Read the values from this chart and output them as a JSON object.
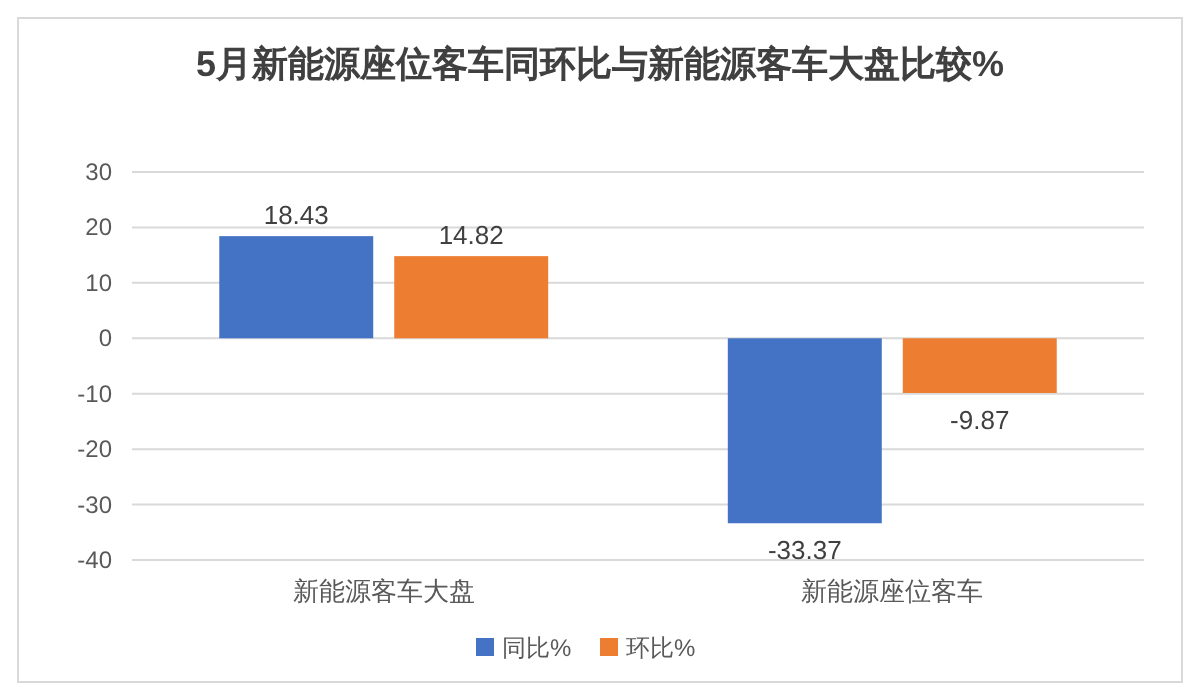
{
  "chart_data": {
    "type": "bar",
    "title": "5月新能源座位客车同环比与新能源客车大盘比较%",
    "categories": [
      "新能源客车大盘",
      "新能源座位客车"
    ],
    "series": [
      {
        "name": "同比%",
        "color": "#4472c4",
        "values": [
          18.43,
          -33.37
        ]
      },
      {
        "name": "环比%",
        "color": "#ed7d31",
        "values": [
          14.82,
          -9.87
        ]
      }
    ],
    "ylim": [
      -40,
      30
    ],
    "yticks": [
      -40,
      -30,
      -20,
      -10,
      0,
      10,
      20,
      30
    ],
    "grid": "y",
    "legend": "bottom",
    "data_labels": true
  }
}
